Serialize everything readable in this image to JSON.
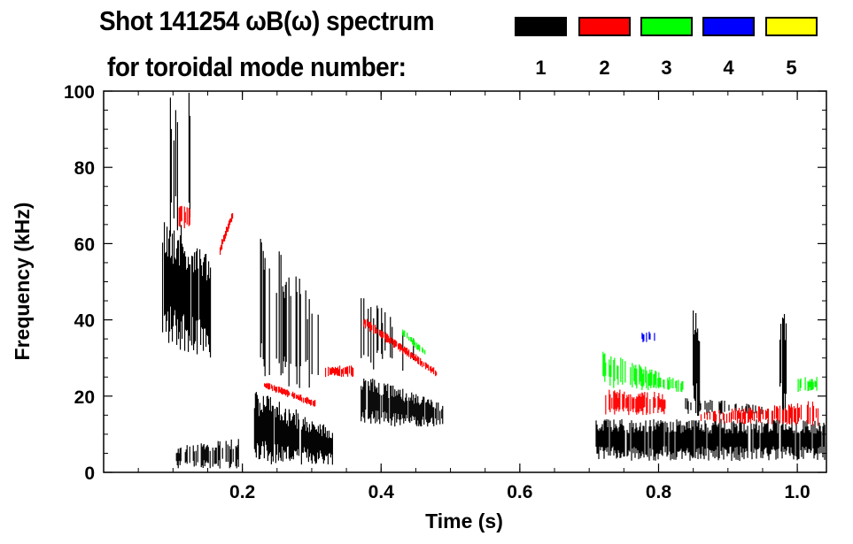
{
  "title_line1": "Shot 141254 ωB(ω) spectrum",
  "title_line2": "for toroidal mode number:",
  "legend": [
    {
      "label": "1",
      "color": "#000000"
    },
    {
      "label": "2",
      "color": "#ff0000"
    },
    {
      "label": "3",
      "color": "#00ff00"
    },
    {
      "label": "4",
      "color": "#0000ff"
    },
    {
      "label": "5",
      "color": "#ffff00"
    }
  ],
  "chart_data": {
    "type": "heatmap",
    "title": "Shot 141254 ωB(ω) spectrum for toroidal mode number",
    "xlabel": "Time (s)",
    "ylabel": "Frequency (kHz)",
    "xlim": [
      0.0,
      1.042
    ],
    "ylim": [
      0,
      100
    ],
    "xticks": [
      0.2,
      0.4,
      0.6,
      0.8,
      1.0
    ],
    "xtick_labels": [
      "0.2",
      "0.4",
      "0.6",
      "0.8",
      "1.0"
    ],
    "yticks": [
      0,
      20,
      40,
      60,
      80,
      100
    ],
    "ytick_labels": [
      "0",
      "20",
      "40",
      "60",
      "80",
      "100"
    ],
    "grid": false,
    "legend_placement": "top-right",
    "features": [
      {
        "mode": 1,
        "t": [
          0.085,
          0.155
        ],
        "f_start": [
          33,
          68
        ],
        "f_end": [
          30,
          60
        ],
        "density": 0.9
      },
      {
        "mode": 1,
        "t": [
          0.095,
          0.135
        ],
        "f_start": [
          60,
          100
        ],
        "f_end": [
          60,
          100
        ],
        "density": 0.25
      },
      {
        "mode": 1,
        "t": [
          0.105,
          0.195
        ],
        "f_start": [
          1,
          7
        ],
        "f_end": [
          1,
          9
        ],
        "density": 0.7
      },
      {
        "mode": 2,
        "t": [
          0.105,
          0.125
        ],
        "f_start": [
          64,
          70
        ],
        "f_end": [
          64,
          70
        ],
        "density": 0.5
      },
      {
        "mode": 2,
        "t": [
          0.168,
          0.186
        ],
        "f_start": [
          57,
          60
        ],
        "f_end": [
          66,
          69
        ],
        "density": 0.9
      },
      {
        "mode": 1,
        "t": [
          0.215,
          0.33
        ],
        "f_start": [
          2,
          22
        ],
        "f_end": [
          2,
          12
        ],
        "density": 0.95
      },
      {
        "mode": 1,
        "t": [
          0.225,
          0.31
        ],
        "f_start": [
          22,
          65
        ],
        "f_end": [
          22,
          45
        ],
        "density": 0.2
      },
      {
        "mode": 2,
        "t": [
          0.232,
          0.305
        ],
        "f_start": [
          22,
          24
        ],
        "f_end": [
          17,
          19
        ],
        "density": 0.9
      },
      {
        "mode": 2,
        "t": [
          0.32,
          0.36
        ],
        "f_start": [
          25,
          28
        ],
        "f_end": [
          25,
          28
        ],
        "density": 0.8
      },
      {
        "mode": 1,
        "t": [
          0.37,
          0.49
        ],
        "f_start": [
          12,
          26
        ],
        "f_end": [
          12,
          18
        ],
        "density": 0.9
      },
      {
        "mode": 1,
        "t": [
          0.37,
          0.45
        ],
        "f_start": [
          26,
          47
        ],
        "f_end": [
          26,
          38
        ],
        "density": 0.3
      },
      {
        "mode": 2,
        "t": [
          0.375,
          0.48
        ],
        "f_start": [
          38,
          41
        ],
        "f_end": [
          25,
          27
        ],
        "density": 0.8
      },
      {
        "mode": 3,
        "t": [
          0.43,
          0.465
        ],
        "f_start": [
          36,
          38
        ],
        "f_end": [
          30,
          32
        ],
        "density": 0.7
      },
      {
        "mode": 1,
        "t": [
          0.71,
          1.04
        ],
        "f_start": [
          3,
          14
        ],
        "f_end": [
          3,
          14
        ],
        "density": 0.9
      },
      {
        "mode": 1,
        "t": [
          0.83,
          0.95
        ],
        "f_start": [
          15,
          20
        ],
        "f_end": [
          15,
          18
        ],
        "density": 0.35
      },
      {
        "mode": 2,
        "t": [
          0.72,
          0.81
        ],
        "f_start": [
          15,
          22
        ],
        "f_end": [
          15,
          21
        ],
        "density": 0.75
      },
      {
        "mode": 3,
        "t": [
          0.72,
          0.835
        ],
        "f_start": [
          22,
          32
        ],
        "f_end": [
          21,
          24
        ],
        "density": 0.6
      },
      {
        "mode": 4,
        "t": [
          0.775,
          0.795
        ],
        "f_start": [
          34,
          37
        ],
        "f_end": [
          34,
          37
        ],
        "density": 0.5
      },
      {
        "mode": 2,
        "t": [
          0.86,
          1.03
        ],
        "f_start": [
          13,
          16
        ],
        "f_end": [
          12,
          19
        ],
        "density": 0.5
      },
      {
        "mode": 3,
        "t": [
          1.0,
          1.03
        ],
        "f_start": [
          21,
          25
        ],
        "f_end": [
          21,
          25
        ],
        "density": 0.6
      },
      {
        "mode": 1,
        "t": [
          0.85,
          0.86
        ],
        "f_start": [
          14,
          43
        ],
        "f_end": [
          14,
          43
        ],
        "density": 0.9
      },
      {
        "mode": 1,
        "t": [
          0.975,
          0.985
        ],
        "f_start": [
          14,
          42
        ],
        "f_end": [
          14,
          42
        ],
        "density": 0.9
      }
    ]
  }
}
